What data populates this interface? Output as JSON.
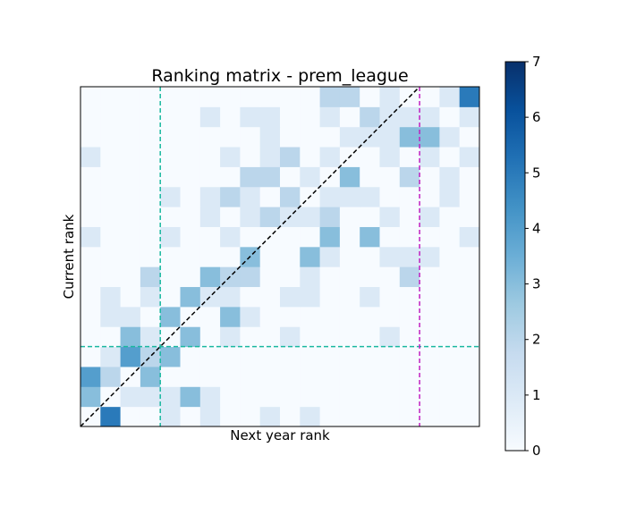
{
  "chart_data": {
    "type": "heatmap",
    "title": "Ranking matrix - prem_league",
    "xlabel": "Next year rank",
    "ylabel": "Current rank",
    "grid": false,
    "n": 20,
    "row_order": "bottom-to-top",
    "matrix": [
      [
        0,
        5,
        0,
        0,
        1,
        0,
        1,
        0,
        0,
        1,
        0,
        1,
        0,
        0,
        0,
        0,
        0,
        0,
        0,
        0
      ],
      [
        3,
        0,
        1,
        1,
        1,
        3,
        1,
        0,
        0,
        0,
        0,
        0,
        0,
        0,
        0,
        0,
        0,
        0,
        0,
        0
      ],
      [
        4,
        2,
        0,
        3,
        0,
        0,
        0,
        0,
        0,
        0,
        0,
        0,
        0,
        0,
        0,
        0,
        0,
        0,
        0,
        0
      ],
      [
        0,
        1,
        4,
        2,
        3,
        0,
        0,
        0,
        0,
        0,
        0,
        0,
        0,
        0,
        0,
        0,
        0,
        0,
        0,
        0
      ],
      [
        0,
        0,
        3,
        1,
        0,
        3,
        0,
        1,
        0,
        0,
        1,
        0,
        0,
        0,
        0,
        1,
        0,
        0,
        0,
        0
      ],
      [
        0,
        1,
        1,
        0,
        3,
        0,
        0,
        3,
        1,
        0,
        0,
        0,
        0,
        0,
        0,
        0,
        0,
        0,
        0,
        0
      ],
      [
        0,
        1,
        0,
        1,
        0,
        3,
        1,
        1,
        0,
        0,
        1,
        1,
        0,
        0,
        1,
        0,
        0,
        0,
        0,
        0
      ],
      [
        0,
        0,
        0,
        2,
        0,
        0,
        3,
        2,
        2,
        0,
        0,
        1,
        0,
        0,
        0,
        0,
        2,
        0,
        0,
        0
      ],
      [
        0,
        0,
        0,
        0,
        0,
        0,
        0,
        0,
        3,
        0,
        0,
        3,
        1,
        0,
        0,
        1,
        1,
        1,
        0,
        0
      ],
      [
        1,
        0,
        0,
        0,
        1,
        0,
        0,
        1,
        0,
        0,
        0,
        0,
        3,
        0,
        3,
        0,
        0,
        0,
        0,
        1
      ],
      [
        0,
        0,
        0,
        0,
        0,
        0,
        1,
        0,
        1,
        2,
        1,
        1,
        2,
        0,
        0,
        1,
        0,
        1,
        0,
        0
      ],
      [
        0,
        0,
        0,
        0,
        1,
        0,
        1,
        2,
        1,
        0,
        2,
        0,
        1,
        1,
        1,
        0,
        0,
        0,
        1,
        0
      ],
      [
        0,
        0,
        0,
        0,
        0,
        0,
        0,
        0,
        2,
        2,
        0,
        1,
        0,
        3,
        0,
        0,
        2,
        0,
        1,
        0
      ],
      [
        1,
        0,
        0,
        0,
        0,
        0,
        0,
        1,
        0,
        1,
        2,
        0,
        1,
        0,
        0,
        1,
        0,
        1,
        0,
        1
      ],
      [
        0,
        0,
        0,
        0,
        0,
        0,
        0,
        0,
        0,
        1,
        0,
        0,
        0,
        1,
        1,
        1,
        3,
        3,
        1,
        0
      ],
      [
        0,
        0,
        0,
        0,
        0,
        0,
        1,
        0,
        1,
        1,
        0,
        0,
        1,
        0,
        2,
        1,
        1,
        1,
        0,
        1
      ],
      [
        0,
        0,
        0,
        0,
        0,
        0,
        0,
        0,
        0,
        0,
        0,
        0,
        2,
        2,
        0,
        1,
        0,
        0,
        1,
        5
      ]
    ],
    "colorbar": {
      "min": 0,
      "max": 7,
      "ticks": [
        0,
        1,
        2,
        3,
        4,
        5,
        6,
        7
      ]
    },
    "reference_lines": [
      {
        "kind": "diagonal",
        "color": "#000000"
      },
      {
        "kind": "vertical",
        "at": 4,
        "color": "#1ab8a0"
      },
      {
        "kind": "horizontal",
        "at": 4,
        "color": "#1ab8a0"
      },
      {
        "kind": "vertical",
        "at": 17,
        "color": "#c020c0"
      }
    ]
  }
}
